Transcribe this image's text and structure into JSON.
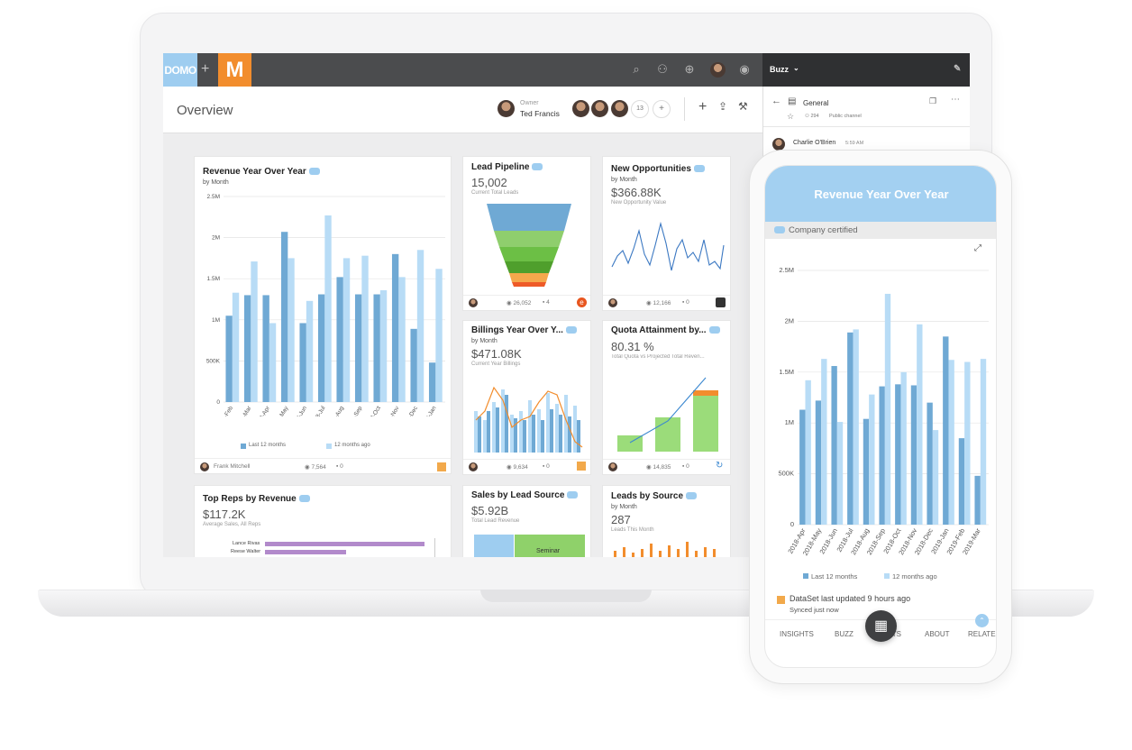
{
  "colors": {
    "dark_bar": "#6fa9d4",
    "light_bar": "#b8dcf6",
    "accent": "#f28d2d",
    "domo": "#9ecdf0"
  },
  "app": {
    "domo_logo": "DOMO",
    "plus": "+",
    "m_logo": "M",
    "buzz_label": "Buzz",
    "title": "Overview",
    "owner_label": "Owner",
    "owner_name": "Ted Francis",
    "member_count": "13"
  },
  "buzz": {
    "channel": "General",
    "members": "294",
    "visibility": "Public channel",
    "user": "Charlie O'Brien",
    "time": "5:59 AM"
  },
  "cards": {
    "revenue": {
      "title": "Revenue Year Over Year",
      "subtitle": "by Month",
      "yticks": [
        "2.5M",
        "2M",
        "1.5M",
        "1M",
        "500K",
        "0"
      ],
      "xticks": [
        "2018-Feb",
        "2018-Mar",
        "2018-Apr",
        "2018-May",
        "2018-Jun",
        "2018-Jul",
        "2018-Aug",
        "2018-Sep",
        "2018-Oct",
        "2018-Nov",
        "2018-Dec",
        "2019-Jan"
      ],
      "legend_a": "Last 12 months",
      "legend_b": "12 months ago",
      "owner": "Frank Mitchell",
      "views": "7,564",
      "comments": "0"
    },
    "lead_pipeline": {
      "title": "Lead Pipeline",
      "value": "15,002",
      "caption": "Current Total Leads",
      "views": "26,052",
      "comments": "4"
    },
    "new_opps": {
      "title": "New Opportunities",
      "subtitle": "by Month",
      "value": "$366.88K",
      "caption": "New Opportunity Value",
      "views": "12,166",
      "comments": "0"
    },
    "billings": {
      "title": "Billings Year Over Y...",
      "subtitle": "by Month",
      "value": "$471.08K",
      "caption": "Current Year Billings",
      "views": "9,634",
      "comments": "0"
    },
    "quota": {
      "title": "Quota Attainment by...",
      "value": "80.31 %",
      "caption": "Total Quota vs Projected Total Reven...",
      "views": "14,835",
      "comments": "0"
    },
    "top_reps": {
      "title": "Top Reps by Revenue",
      "value": "$117.2K",
      "caption": "Average Sales, All Reps",
      "rep1": "Lance Rivas",
      "rep2": "Reese Walter"
    },
    "sales_source": {
      "title": "Sales by Lead Source",
      "value": "$5.92B",
      "caption": "Total Lead Revenue",
      "segment": "Seminar"
    },
    "leads_source": {
      "title": "Leads by Source",
      "subtitle": "by Month",
      "value": "287",
      "caption": "Leads This Month"
    }
  },
  "phone": {
    "title": "Revenue Year Over Year",
    "certified": "Company certified",
    "yticks": [
      "2.5M",
      "2M",
      "1.5M",
      "1M",
      "500K",
      "0"
    ],
    "xticks": [
      "2018-Apr",
      "2018-May",
      "2018-Jun",
      "2018-Jul",
      "2018-Aug",
      "2018-Sep",
      "2018-Oct",
      "2018-Nov",
      "2018-Dec",
      "2019-Jan",
      "2019-Feb",
      "2019-Mar"
    ],
    "legend_a": "Last 12 months",
    "legend_b": "12 months ago",
    "updated": "DataSet last updated 9 hours ago",
    "synced": "Synced just now",
    "tabs": [
      "INSIGHTS",
      "BUZZ",
      "ALERTS",
      "ABOUT",
      "RELATED"
    ]
  },
  "chart_data": [
    {
      "type": "bar",
      "title": "Revenue Year Over Year",
      "categories": [
        "2018-Feb",
        "2018-Mar",
        "2018-Apr",
        "2018-May",
        "2018-Jun",
        "2018-Jul",
        "2018-Aug",
        "2018-Sep",
        "2018-Oct",
        "2018-Nov",
        "2018-Dec",
        "2019-Jan"
      ],
      "ylim": [
        0,
        2500000
      ],
      "series": [
        {
          "name": "Last 12 months",
          "values": [
            1050000,
            1300000,
            1300000,
            2070000,
            960000,
            1310000,
            1520000,
            1310000,
            1310000,
            1800000,
            890000,
            480000
          ]
        },
        {
          "name": "12 months ago",
          "values": [
            1330000,
            1710000,
            960000,
            1750000,
            1230000,
            2270000,
            1750000,
            1780000,
            1360000,
            1520000,
            1850000,
            1620000
          ]
        }
      ]
    },
    {
      "type": "bar",
      "title": "Revenue Year Over Year",
      "categories": [
        "2018-Apr",
        "2018-May",
        "2018-Jun",
        "2018-Jul",
        "2018-Aug",
        "2018-Sep",
        "2018-Oct",
        "2018-Nov",
        "2018-Dec",
        "2019-Jan",
        "2019-Feb",
        "2019-Mar"
      ],
      "ylim": [
        0,
        2500000
      ],
      "series": [
        {
          "name": "Last 12 months",
          "values": [
            1130000,
            1220000,
            1560000,
            1890000,
            1040000,
            1360000,
            1380000,
            1370000,
            1200000,
            1850000,
            850000,
            480000
          ]
        },
        {
          "name": "12 months ago",
          "values": [
            1420000,
            1630000,
            1010000,
            1920000,
            1280000,
            2270000,
            1500000,
            1970000,
            930000,
            1620000,
            1600000,
            1630000
          ]
        }
      ]
    }
  ]
}
